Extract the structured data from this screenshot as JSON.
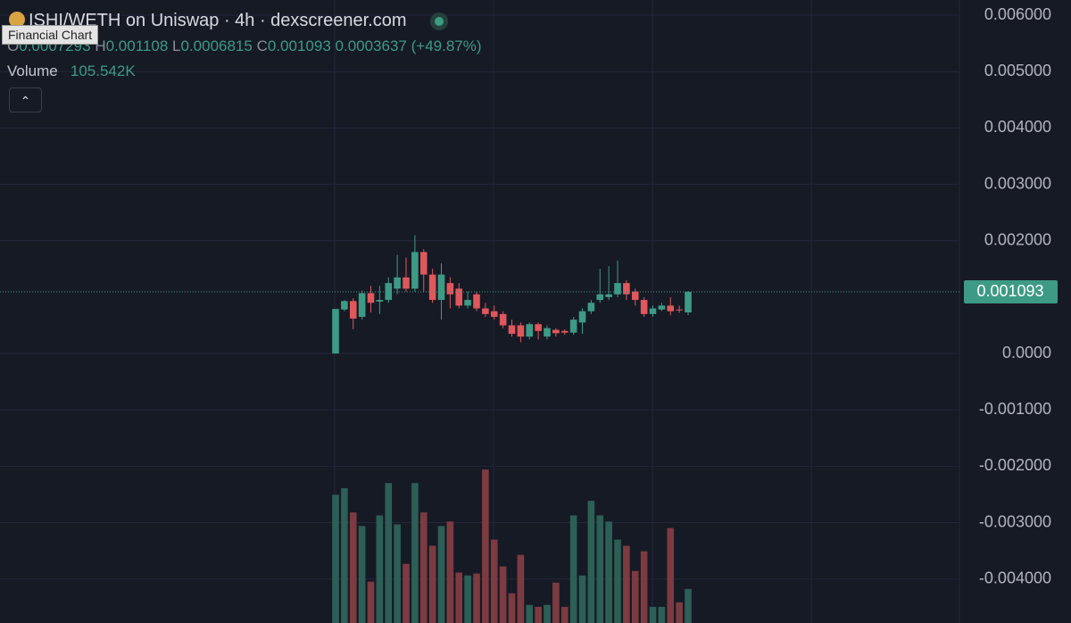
{
  "chart_data": {
    "type": "candlestick",
    "title": "ISHI/WETH on Uniswap · 4h · dexscreener.com",
    "tooltip": "Financial Chart",
    "legend_keys": [
      "O",
      "H",
      "L",
      "C"
    ],
    "change": 0.0003637,
    "change_percent": {
      "value": 49.87,
      "label": "(+49.87%)"
    },
    "open": [
      0,
      0.00078,
      0.00093,
      0.00065,
      0.00107,
      0.00092,
      0.00095,
      0.00115,
      0.00135,
      0.00115,
      0.0018,
      0.0014,
      0.00095,
      0.00125,
      0.00115,
      0.00085,
      0.00105,
      0.0008,
      0.00075,
      0.0007,
      0.0005,
      0.0005,
      0.0003,
      0.00052,
      0.0003,
      0.00042,
      0.0004,
      0.00037,
      0.00055,
      0.00075,
      0.00095,
      0.001,
      0.00105,
      0.00125,
      0.0011,
      0.00095,
      0.0007,
      0.00078,
      0.00085,
      0.00078,
      0.0007293
    ],
    "high": [
      0.00079,
      0.00095,
      0.00098,
      0.00112,
      0.0012,
      0.0012,
      0.00135,
      0.00175,
      0.0017,
      0.0021,
      0.00185,
      0.0015,
      0.0016,
      0.00135,
      0.00125,
      0.0011,
      0.0011,
      0.0009,
      0.00085,
      0.00075,
      0.0006,
      0.00055,
      0.00055,
      0.00055,
      0.0005,
      0.00045,
      0.00043,
      0.00065,
      0.0008,
      0.00095,
      0.0015,
      0.00155,
      0.00165,
      0.0013,
      0.00115,
      0.001,
      0.00085,
      0.0009,
      0.001,
      0.00085,
      0.001108
    ],
    "low": [
      0,
      0.00075,
      0.00043,
      0.0006,
      0.00073,
      0.0007,
      0.0009,
      0.00105,
      0.0011,
      0.0011,
      0.0011,
      0.0009,
      0.0006,
      0.0008,
      0.0008,
      0.0008,
      0.00075,
      0.00065,
      0.0006,
      0.00045,
      0.0003,
      0.0002,
      0.00025,
      0.00025,
      0.00025,
      0.0003,
      0.00033,
      0.00033,
      0.00035,
      0.0007,
      0.0009,
      0.00095,
      0.001,
      0.00095,
      0.00085,
      0.00065,
      0.00065,
      0.00075,
      0.00068,
      0.00072,
      0.0006815
    ],
    "close": [
      0.00079,
      0.00093,
      0.00062,
      0.00107,
      0.0009,
      0.00095,
      0.00125,
      0.00135,
      0.00115,
      0.0018,
      0.0014,
      0.00095,
      0.0014,
      0.00105,
      0.00085,
      0.00095,
      0.0008,
      0.0007,
      0.00065,
      0.0005,
      0.00035,
      0.0003,
      0.00052,
      0.0004,
      0.00045,
      0.00036,
      0.00037,
      0.0006,
      0.00075,
      0.0009,
      0.00105,
      0.00105,
      0.00125,
      0.00105,
      0.00095,
      0.0007,
      0.0008,
      0.00085,
      0.00075,
      0.00077,
      0.001093
    ],
    "volume": {
      "name": "Volume",
      "values": [
        397000,
        417000,
        342000,
        300000,
        128000,
        333000,
        433000,
        305000,
        183000,
        433000,
        342000,
        239000,
        300000,
        314000,
        156000,
        147000,
        153000,
        475000,
        258000,
        175000,
        92000,
        211000,
        56000,
        50000,
        56000,
        125000,
        50000,
        333000,
        147000,
        378000,
        333000,
        314000,
        258000,
        239000,
        161000,
        222000,
        50000,
        50000,
        294000,
        64000,
        105542
      ],
      "value_labels": [
        null,
        null,
        null,
        null,
        null,
        null,
        null,
        null,
        null,
        null,
        null,
        null,
        null,
        null,
        null,
        null,
        null,
        null,
        null,
        null,
        null,
        null,
        null,
        null,
        null,
        null,
        null,
        null,
        null,
        null,
        null,
        null,
        null,
        null,
        null,
        null,
        null,
        null,
        null,
        null,
        "105.542K"
      ]
    },
    "up_color": "#3d9b85",
    "down_color": "#e0575c",
    "volume_up_color": "#2c5f56",
    "volume_down_color": "#7c3b41",
    "ylim": [
      -0.00478,
      0.00627
    ],
    "yticks": [
      {
        "value": 0.006,
        "label": "0.006000"
      },
      {
        "value": 0.005,
        "label": "0.005000"
      },
      {
        "value": 0.004,
        "label": "0.004000"
      },
      {
        "value": 0.003,
        "label": "0.003000"
      },
      {
        "value": 0.002,
        "label": "0.002000"
      },
      {
        "value": 0,
        "label": "0.0000"
      },
      {
        "value": -0.001,
        "label": "-0.001000"
      },
      {
        "value": -0.002,
        "label": "-0.002000"
      },
      {
        "value": -0.003,
        "label": "-0.003000"
      },
      {
        "value": -0.004,
        "label": "-0.004000"
      }
    ],
    "grid": true
  }
}
